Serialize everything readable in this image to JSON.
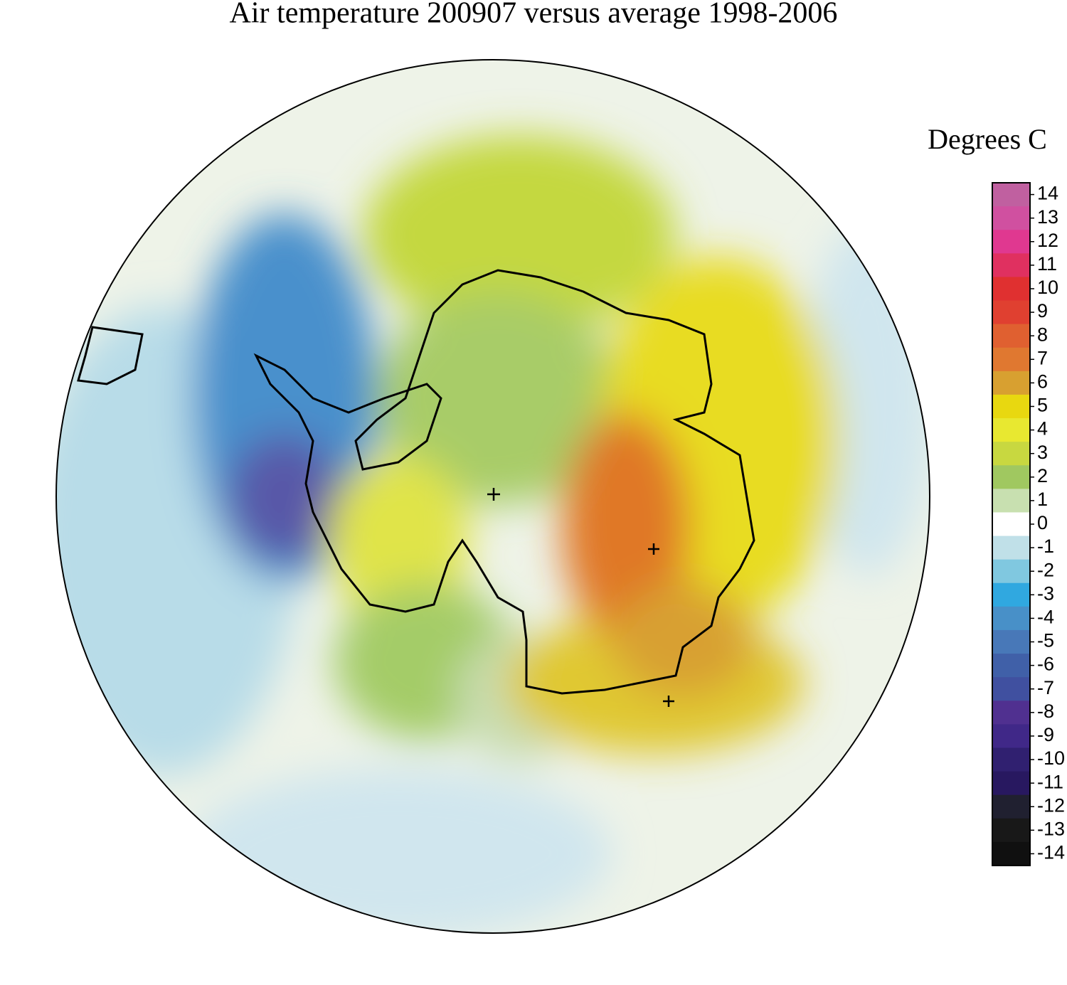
{
  "chart_data": {
    "type": "map",
    "title": "Air temperature 200907 versus average 1998-2006",
    "colorbar_label": "Degrees C",
    "colorbar_ticks": [
      14,
      13,
      12,
      11,
      10,
      9,
      8,
      7,
      6,
      5,
      4,
      3,
      2,
      1,
      0,
      -1,
      -2,
      -3,
      -4,
      -5,
      -6,
      -7,
      -8,
      -9,
      -10,
      -11,
      -12,
      -13,
      -14
    ],
    "colorbar_colors": [
      "#c060a0",
      "#d050a0",
      "#e03890",
      "#e03060",
      "#e03030",
      "#e04030",
      "#e06030",
      "#e07830",
      "#d8a030",
      "#e8d810",
      "#e8e830",
      "#c8d840",
      "#a0c860",
      "#c8e0b0",
      "#ffffff",
      "#c0e0e8",
      "#80c8e0",
      "#30a8e0",
      "#4890c8",
      "#4878b8",
      "#4060a8",
      "#4050a0",
      "#503090",
      "#402888",
      "#302070",
      "#281860",
      "#202030",
      "#181818",
      "#101010"
    ]
  }
}
